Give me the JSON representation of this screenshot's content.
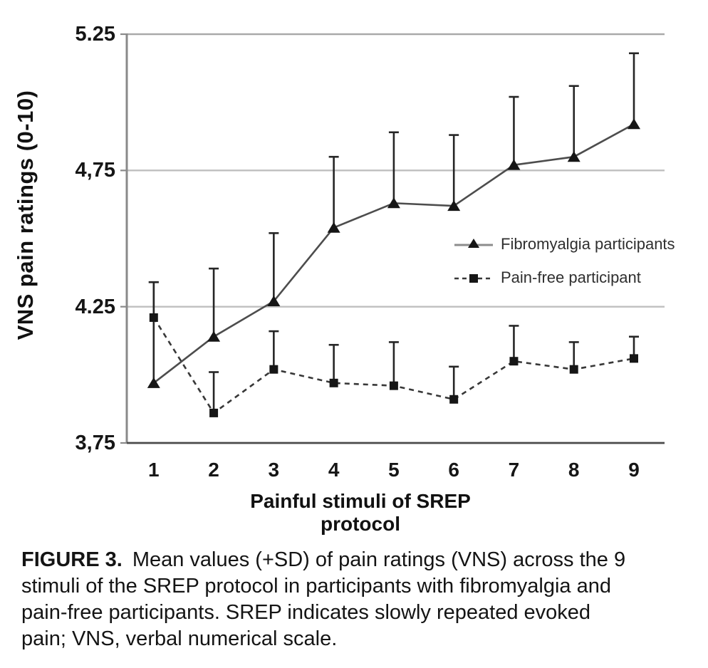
{
  "figure": {
    "caption": {
      "label": "FIGURE 3.",
      "lines": [
        "Mean values (+SD) of pain ratings (VNS) across the 9",
        "stimuli of the SREP protocol in participants with fibromyalgia and",
        "pain-free participants. SREP indicates slowly repeated evoked",
        "pain; VNS, verbal numerical scale."
      ]
    }
  },
  "chart_data": {
    "type": "line",
    "title": "",
    "xlabel": "Painful stimuli of SREP protocol",
    "ylabel": "VNS pain ratings (0-10)",
    "categories": [
      "1",
      "2",
      "3",
      "4",
      "5",
      "6",
      "7",
      "8",
      "9"
    ],
    "ylim": [
      3.75,
      5.25
    ],
    "yticks": [
      5.25,
      4.75,
      4.25,
      3.75
    ],
    "ytick_labels": [
      "5.25",
      "4,75",
      "4.25",
      "3,75"
    ],
    "gridline_values": [
      4.75,
      4.25
    ],
    "grid": true,
    "legend_position": "inside-right",
    "error_bars": "+SD, upward only, capped",
    "series": [
      {
        "name": "Fibromyalgia participants",
        "marker": "triangle",
        "line_style": "solid",
        "values": [
          3.97,
          4.14,
          4.27,
          4.54,
          4.63,
          4.62,
          4.77,
          4.8,
          4.92
        ],
        "sd_top": [
          4.34,
          4.39,
          4.52,
          4.8,
          4.89,
          4.88,
          5.02,
          5.06,
          5.18
        ]
      },
      {
        "name": "Pain-free participant",
        "marker": "square",
        "line_style": "dashed",
        "values": [
          4.21,
          3.86,
          4.02,
          3.97,
          3.96,
          3.91,
          4.05,
          4.02,
          4.06
        ],
        "sd_top": [
          4.34,
          4.01,
          4.16,
          4.11,
          4.12,
          4.03,
          4.18,
          4.12,
          4.14
        ]
      }
    ],
    "colors": {
      "solid_line": "#4d4d4d",
      "dashed_line": "#383838",
      "marker": "#161616",
      "error_bar": "#262626",
      "gridline": "#bfbfbf",
      "frame_top": "#a9a9a9",
      "axis_left": "#8a8a8a",
      "axis_bottom": "#4a4a4a"
    }
  }
}
